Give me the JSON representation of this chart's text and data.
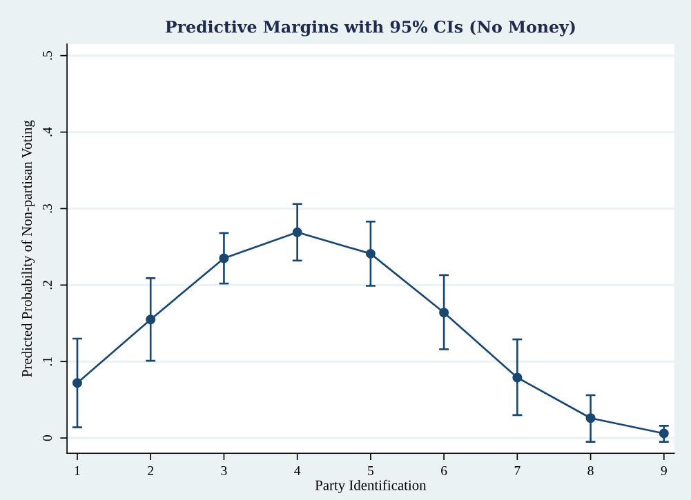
{
  "chart_data": {
    "type": "line",
    "title": "Predictive Margins with 95% CIs (No Money)",
    "xlabel": "Party Identification",
    "ylabel": "Predicted Probability of Non-partisan Voting",
    "x": [
      1,
      2,
      3,
      4,
      5,
      6,
      7,
      8,
      9
    ],
    "values": [
      0.072,
      0.155,
      0.235,
      0.269,
      0.241,
      0.164,
      0.079,
      0.026,
      0.006
    ],
    "errors": [
      [
        0.014,
        0.13
      ],
      [
        0.101,
        0.209
      ],
      [
        0.202,
        0.268
      ],
      [
        0.232,
        0.306
      ],
      [
        0.199,
        0.283
      ],
      [
        0.116,
        0.213
      ],
      [
        0.03,
        0.129
      ],
      [
        -0.005,
        0.056
      ],
      [
        -0.005,
        0.016
      ]
    ],
    "color": "#1a476f",
    "xlim": [
      0.86,
      9.14
    ],
    "ylim": [
      -0.02,
      0.515
    ],
    "xticks": [
      1,
      2,
      3,
      4,
      5,
      6,
      7,
      8,
      9
    ],
    "yticks": [
      0,
      {
        "value": 0.1,
        "label": ".1"
      },
      {
        "value": 0.2,
        "label": ".2"
      },
      {
        "value": 0.3,
        "label": ".3"
      },
      {
        "value": 0.4,
        "label": ".4"
      },
      {
        "value": 0.5,
        "label": ".5"
      }
    ],
    "grid": "y",
    "marker": "circle",
    "line_style": "solid"
  }
}
